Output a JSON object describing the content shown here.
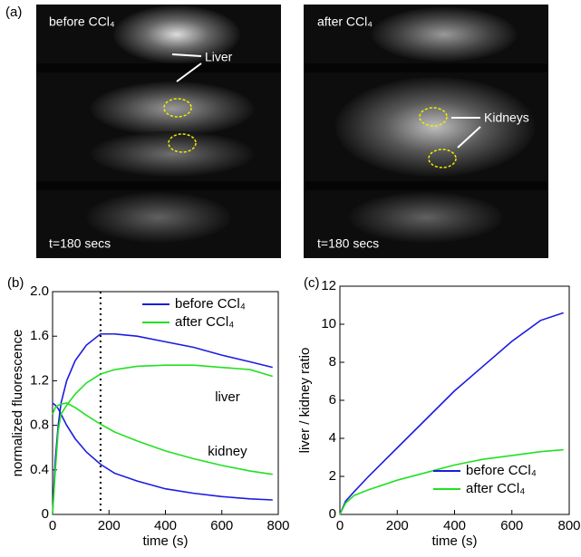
{
  "panel_a": {
    "label": "(a)",
    "images": [
      {
        "title": "before CCl₄",
        "time": "t=180 secs",
        "annotation": "Liver"
      },
      {
        "title": "after CCl₄",
        "time": "t=180 secs",
        "annotation": "Kidneys"
      }
    ]
  },
  "chart_data": [
    {
      "type": "line",
      "panel": "(b)",
      "y_label": "normalized fluorescence",
      "x_label": "time (s)",
      "xlim": [
        0,
        800
      ],
      "xticks": [
        0,
        200,
        400,
        600,
        800
      ],
      "ylim": [
        0,
        2
      ],
      "yticks": [
        0,
        0.4,
        0.8,
        1.2,
        1.6,
        {
          "value": 2,
          "label": "2.0"
        }
      ],
      "vline": 170,
      "legend": "top-right",
      "annotations": [
        "liver",
        "kidney"
      ],
      "x": [
        0,
        10,
        20,
        30,
        50,
        80,
        120,
        170,
        220,
        300,
        400,
        500,
        600,
        700,
        780
      ],
      "series": [
        {
          "name": "before CCl₄",
          "color": "#1c1ce0",
          "values": [
            0,
            0.5,
            0.8,
            1.0,
            1.2,
            1.38,
            1.52,
            1.62,
            1.62,
            1.6,
            1.55,
            1.5,
            1.43,
            1.37,
            1.32
          ],
          "kidney_values": [
            1.0,
            0.98,
            0.95,
            0.9,
            0.8,
            0.68,
            0.56,
            0.45,
            0.37,
            0.3,
            0.23,
            0.19,
            0.16,
            0.14,
            0.13
          ]
        },
        {
          "name": "after CCl₄",
          "color": "#22e022",
          "values": [
            0,
            0.4,
            0.75,
            0.9,
            0.98,
            1.08,
            1.18,
            1.26,
            1.3,
            1.33,
            1.34,
            1.34,
            1.32,
            1.3,
            1.24
          ],
          "kidney_values": [
            0.9,
            0.96,
            0.98,
            0.99,
            1.0,
            0.96,
            0.89,
            0.81,
            0.74,
            0.66,
            0.57,
            0.5,
            0.44,
            0.39,
            0.36
          ]
        }
      ]
    },
    {
      "type": "line",
      "panel": "(c)",
      "y_label": "liver / kidney ratio",
      "x_label": "time (s)",
      "xlim": [
        0,
        800
      ],
      "xticks": [
        0,
        200,
        400,
        600,
        800
      ],
      "ylim": [
        0,
        12
      ],
      "yticks": [
        0,
        2,
        4,
        6,
        8,
        10,
        12
      ],
      "legend": "bottom-right",
      "x": [
        0,
        20,
        50,
        100,
        200,
        300,
        400,
        500,
        600,
        700,
        780
      ],
      "series": [
        {
          "name": "before CCl₄",
          "color": "#1c1ce0",
          "values": [
            0,
            0.7,
            1.2,
            2.0,
            3.5,
            5.0,
            6.5,
            7.8,
            9.1,
            10.2,
            10.6
          ]
        },
        {
          "name": "after CCl₄",
          "color": "#22e022",
          "values": [
            0,
            0.6,
            1.0,
            1.3,
            1.8,
            2.2,
            2.6,
            2.9,
            3.1,
            3.3,
            3.4
          ]
        }
      ]
    }
  ]
}
